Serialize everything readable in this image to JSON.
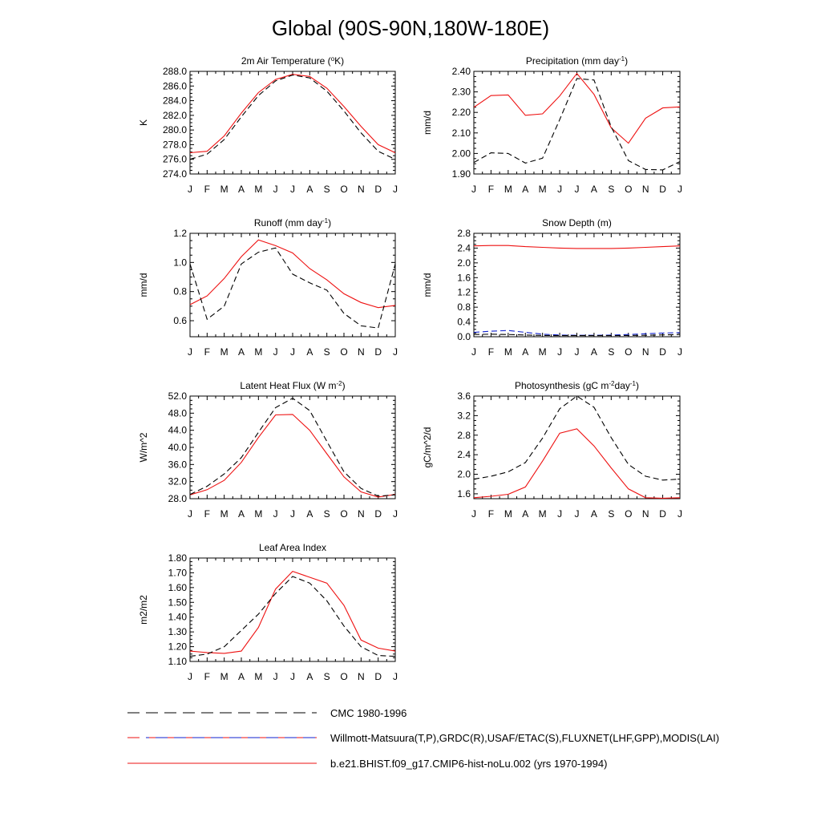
{
  "figure": {
    "title": "Global (90S-90N,180W-180E)"
  },
  "legend": {
    "entries": [
      {
        "label": "CMC 1980-1996"
      },
      {
        "label": "Willmott-Matsuura(T,P),GRDC(R),USAF/ETAC(S),FLUXNET(LHF,GPP),MODIS(LAI)"
      },
      {
        "label": "b.e21.BHIST.f09_g17.CMIP6-hist-noLu.002 (yrs 1970-1994)"
      }
    ]
  },
  "colors": {
    "model": "#ee1111",
    "obs": "#000000",
    "cmc": "#1122cc"
  },
  "chart_data": [
    {
      "type": "line",
      "title": "2m Air Temperature (°K)",
      "title_parts": [
        "2m Air Temperature (",
        "o",
        "K)"
      ],
      "ylabel": "K",
      "categories": [
        "J",
        "F",
        "M",
        "A",
        "M",
        "J",
        "J",
        "A",
        "S",
        "O",
        "N",
        "D",
        "J"
      ],
      "ylim": [
        274.0,
        288.0
      ],
      "yticks": [
        274.0,
        276.0,
        278.0,
        280.0,
        282.0,
        284.0,
        286.0,
        288.0
      ],
      "ytick_labels": [
        "274.0",
        "276.0",
        "278.0",
        "280.0",
        "282.0",
        "284.0",
        "286.0",
        "288.0"
      ],
      "series": [
        {
          "style": "model",
          "values": [
            276.9,
            277.1,
            279.2,
            282.3,
            285.1,
            286.9,
            287.6,
            287.3,
            285.7,
            283.2,
            280.5,
            278.0,
            276.9
          ]
        },
        {
          "style": "obs",
          "values": [
            276.0,
            276.7,
            278.7,
            281.8,
            284.7,
            286.7,
            287.5,
            287.1,
            285.3,
            282.6,
            279.6,
            277.1,
            276.0
          ]
        }
      ]
    },
    {
      "type": "line",
      "title": "Precipitation (mm day-1)",
      "title_parts": [
        "Precipitation (mm day",
        "-1",
        ")"
      ],
      "ylabel": "mm/d",
      "categories": [
        "J",
        "F",
        "M",
        "A",
        "M",
        "J",
        "J",
        "A",
        "S",
        "O",
        "N",
        "D",
        "J"
      ],
      "ylim": [
        1.9,
        2.4
      ],
      "yticks": [
        1.9,
        2.0,
        2.1,
        2.2,
        2.3,
        2.4
      ],
      "ytick_labels": [
        "1.90",
        "2.00",
        "2.10",
        "2.20",
        "2.30",
        "2.40"
      ],
      "series": [
        {
          "style": "model",
          "values": [
            2.225,
            2.282,
            2.285,
            2.186,
            2.193,
            2.28,
            2.39,
            2.288,
            2.125,
            2.05,
            2.172,
            2.222,
            2.227
          ]
        },
        {
          "style": "obs",
          "values": [
            1.956,
            2.003,
            2.0,
            1.953,
            1.977,
            2.165,
            2.365,
            2.358,
            2.13,
            1.965,
            1.922,
            1.92,
            1.96
          ]
        }
      ]
    },
    {
      "type": "line",
      "title": "Runoff (mm day-1)",
      "title_parts": [
        "Runoff (mm day",
        "-1",
        ")"
      ],
      "ylabel": "mm/d",
      "categories": [
        "J",
        "F",
        "M",
        "A",
        "M",
        "J",
        "J",
        "A",
        "S",
        "O",
        "N",
        "D",
        "J"
      ],
      "ylim": [
        0.49,
        1.2
      ],
      "yticks": [
        0.6,
        0.8,
        1.0,
        1.2
      ],
      "ytick_labels": [
        "0.6",
        "0.8",
        "1.0",
        "1.2"
      ],
      "series": [
        {
          "style": "model",
          "values": [
            0.71,
            0.77,
            0.89,
            1.04,
            1.155,
            1.115,
            1.065,
            0.958,
            0.88,
            0.785,
            0.725,
            0.69,
            0.705
          ]
        },
        {
          "style": "obs",
          "values": [
            0.99,
            0.61,
            0.7,
            0.99,
            1.07,
            1.1,
            0.92,
            0.86,
            0.81,
            0.65,
            0.565,
            0.55,
            0.99
          ]
        }
      ]
    },
    {
      "type": "line",
      "title": "Snow Depth (m)",
      "title_parts": [
        "Snow Depth (m)"
      ],
      "ylabel": "mm/d",
      "categories": [
        "J",
        "F",
        "M",
        "A",
        "M",
        "J",
        "J",
        "A",
        "S",
        "O",
        "N",
        "D",
        "J"
      ],
      "ylim": [
        0.0,
        2.8
      ],
      "yticks": [
        0.0,
        0.4,
        0.8,
        1.2,
        1.6,
        2.0,
        2.4,
        2.8
      ],
      "ytick_labels": [
        "0.0",
        "0.4",
        "0.8",
        "1.2",
        "1.6",
        "2.0",
        "2.4",
        "2.8"
      ],
      "series": [
        {
          "style": "model",
          "values": [
            2.46,
            2.47,
            2.47,
            2.44,
            2.42,
            2.4,
            2.39,
            2.39,
            2.39,
            2.4,
            2.42,
            2.44,
            2.46
          ]
        },
        {
          "style": "cmc",
          "values": [
            0.12,
            0.15,
            0.17,
            0.12,
            0.07,
            0.045,
            0.04,
            0.04,
            0.045,
            0.06,
            0.08,
            0.1,
            0.11
          ]
        },
        {
          "style": "obs",
          "values": [
            0.06,
            0.07,
            0.06,
            0.045,
            0.035,
            0.03,
            0.03,
            0.03,
            0.03,
            0.035,
            0.04,
            0.05,
            0.06
          ]
        }
      ]
    },
    {
      "type": "line",
      "title": "Latent Heat Flux (W m-2)",
      "title_parts": [
        "Latent Heat Flux (W m",
        "-2",
        ")"
      ],
      "ylabel": "W/m^2",
      "categories": [
        "J",
        "F",
        "M",
        "A",
        "M",
        "J",
        "J",
        "A",
        "S",
        "O",
        "N",
        "D",
        "J"
      ],
      "ylim": [
        28.0,
        52.0
      ],
      "yticks": [
        28.0,
        32.0,
        36.0,
        40.0,
        44.0,
        48.0,
        52.0
      ],
      "ytick_labels": [
        "28.0",
        "32.0",
        "36.0",
        "40.0",
        "44.0",
        "48.0",
        "52.0"
      ],
      "series": [
        {
          "style": "model",
          "values": [
            28.9,
            30.1,
            32.3,
            36.5,
            42.3,
            47.6,
            47.7,
            44.0,
            38.5,
            33.1,
            29.6,
            28.4,
            29.0
          ]
        },
        {
          "style": "obs",
          "values": [
            29.0,
            30.9,
            33.8,
            37.6,
            43.5,
            49.3,
            51.5,
            48.6,
            41.4,
            34.3,
            30.4,
            28.6,
            28.9
          ]
        }
      ]
    },
    {
      "type": "line",
      "title": "Photosynthesis (gC m-2day-1)",
      "title_parts": [
        "Photosynthesis (gC m",
        "-2",
        "day",
        "-1",
        ")"
      ],
      "ylabel": "gC/m^2/d",
      "categories": [
        "J",
        "F",
        "M",
        "A",
        "M",
        "J",
        "J",
        "A",
        "S",
        "O",
        "N",
        "D",
        "J"
      ],
      "ylim": [
        1.5,
        3.6
      ],
      "yticks": [
        1.6,
        2.0,
        2.4,
        2.8,
        3.2,
        3.6
      ],
      "ytick_labels": [
        "1.6",
        "2.0",
        "2.4",
        "2.8",
        "3.2",
        "3.6"
      ],
      "series": [
        {
          "style": "model",
          "values": [
            1.52,
            1.55,
            1.59,
            1.74,
            2.27,
            2.84,
            2.93,
            2.58,
            2.13,
            1.7,
            1.52,
            1.51,
            1.52
          ]
        },
        {
          "style": "obs",
          "values": [
            1.9,
            1.96,
            2.05,
            2.24,
            2.74,
            3.34,
            3.6,
            3.37,
            2.75,
            2.2,
            1.96,
            1.88,
            1.9
          ]
        }
      ]
    },
    {
      "type": "line",
      "title": "Leaf Area Index",
      "title_parts": [
        "Leaf Area Index"
      ],
      "ylabel": "m2/m2",
      "categories": [
        "J",
        "F",
        "M",
        "A",
        "M",
        "J",
        "J",
        "A",
        "S",
        "O",
        "N",
        "D",
        "J"
      ],
      "ylim": [
        1.1,
        1.8
      ],
      "yticks": [
        1.1,
        1.2,
        1.3,
        1.4,
        1.5,
        1.6,
        1.7,
        1.8
      ],
      "ytick_labels": [
        "1.10",
        "1.20",
        "1.30",
        "1.40",
        "1.50",
        "1.60",
        "1.70",
        "1.80"
      ],
      "series": [
        {
          "style": "model",
          "values": [
            1.17,
            1.16,
            1.155,
            1.17,
            1.33,
            1.59,
            1.71,
            1.67,
            1.63,
            1.48,
            1.245,
            1.19,
            1.17
          ]
        },
        {
          "style": "obs",
          "values": [
            1.135,
            1.15,
            1.2,
            1.31,
            1.42,
            1.56,
            1.675,
            1.63,
            1.51,
            1.34,
            1.2,
            1.14,
            1.135
          ]
        }
      ]
    }
  ]
}
